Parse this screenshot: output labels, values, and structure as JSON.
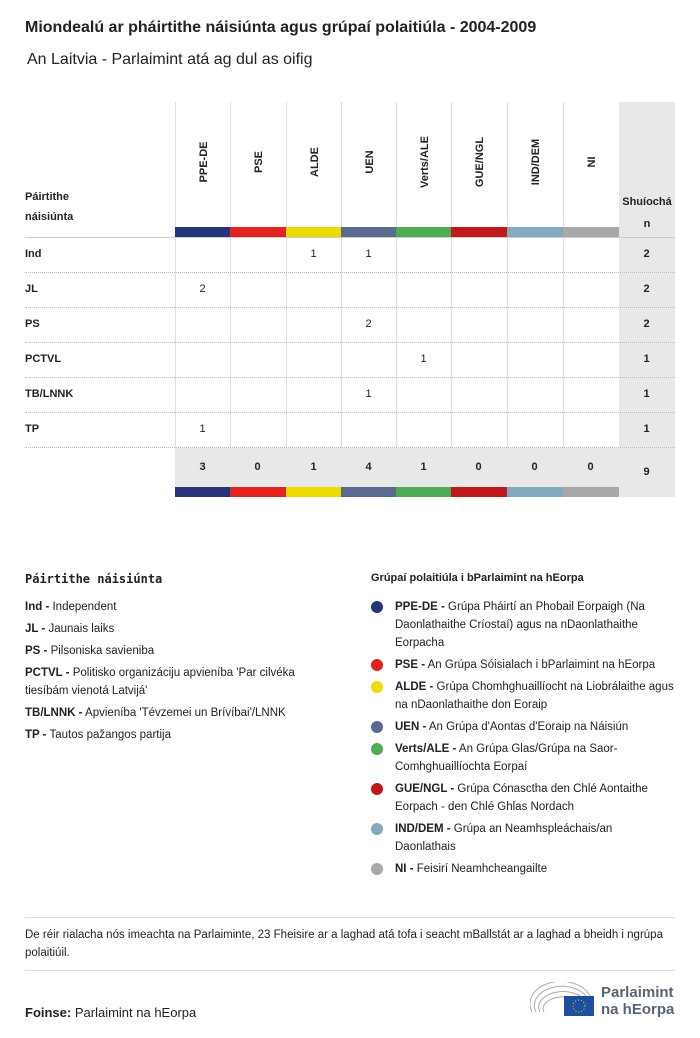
{
  "title": "Miondealú ar pháirtithe náisiúnta agus grúpaí polaitiúla - 2004-2009",
  "subtitle": "An Laitvia - Parlaimint atá ag dul as oifig",
  "table": {
    "row_header": "Páirtithe náisiúnta",
    "total_header": "Shuíochán",
    "groups": [
      {
        "label": "PPE-DE",
        "color": "#263479"
      },
      {
        "label": "PSE",
        "color": "#e42320"
      },
      {
        "label": "ALDE",
        "color": "#ecdc00"
      },
      {
        "label": "UEN",
        "color": "#5a6b92"
      },
      {
        "label": "Verts/ALE",
        "color": "#50ac53"
      },
      {
        "label": "GUE/NGL",
        "color": "#c0191c"
      },
      {
        "label": "IND/DEM",
        "color": "#84a9be"
      },
      {
        "label": "NI",
        "color": "#a8a8a8"
      }
    ],
    "rows": [
      {
        "party": "Ind",
        "values": [
          "",
          "",
          "1",
          "1",
          "",
          "",
          "",
          ""
        ],
        "total": "2"
      },
      {
        "party": "JL",
        "values": [
          "2",
          "",
          "",
          "",
          "",
          "",
          "",
          ""
        ],
        "total": "2"
      },
      {
        "party": "PS",
        "values": [
          "",
          "",
          "",
          "2",
          "",
          "",
          "",
          ""
        ],
        "total": "2"
      },
      {
        "party": "PCTVL",
        "values": [
          "",
          "",
          "",
          "",
          "1",
          "",
          "",
          ""
        ],
        "total": "1"
      },
      {
        "party": "TB/LNNK",
        "values": [
          "",
          "",
          "",
          "1",
          "",
          "",
          "",
          ""
        ],
        "total": "1"
      },
      {
        "party": "TP",
        "values": [
          "1",
          "",
          "",
          "",
          "",
          "",
          "",
          ""
        ],
        "total": "1"
      }
    ],
    "totals": [
      "3",
      "0",
      "1",
      "4",
      "1",
      "0",
      "0",
      "0"
    ],
    "grand_total": "9"
  },
  "legend_parties": {
    "title": "Páirtithe náisiúnta",
    "items": [
      {
        "abbr": "Ind -",
        "name": " Independent"
      },
      {
        "abbr": "JL -",
        "name": " Jaunais laiks"
      },
      {
        "abbr": "PS -",
        "name": " Pilsoniska savieniba"
      },
      {
        "abbr": "PCTVL -",
        "name": " Politisko organizáciju apvieníba 'Par cilvéka tiesíbám vienotá Latvijá'"
      },
      {
        "abbr": "TB/LNNK -",
        "name": " Apvieníba 'Tévzemei un Brívíbai'/LNNK"
      },
      {
        "abbr": "TP -",
        "name": " Tautos pažangos partija"
      }
    ]
  },
  "legend_groups": {
    "title": "Grúpaí polaitiúla i bParlaimint na hEorpa",
    "items": [
      {
        "abbr": "PPE-DE -",
        "name": " Grúpa Pháirtí an Phobail Eorpaigh (Na Daonlathaithe Críostaí) agus na nDaonlathaithe Eorpacha",
        "color": "#263479"
      },
      {
        "abbr": "PSE -",
        "name": " An Grúpa Sóisialach i bParlaimint na hEorpa",
        "color": "#e42320"
      },
      {
        "abbr": "ALDE -",
        "name": " Grúpa Chomhghuaillíocht na Liobrálaithe agus na nDaonlathaithe don Eoraip",
        "color": "#ecdc00"
      },
      {
        "abbr": "UEN -",
        "name": " An Grúpa d'Aontas d'Eoraip na Náisiún",
        "color": "#5a6b92"
      },
      {
        "abbr": "Verts/ALE -",
        "name": " An Grúpa Glas/Grúpa na Saor-Comhghuaillíochta Eorpaí",
        "color": "#50ac53"
      },
      {
        "abbr": "GUE/NGL -",
        "name": " Grúpa Cónasctha den Chlé Aontaithe Eorpach - den Chlé Ghlas Nordach",
        "color": "#c0191c"
      },
      {
        "abbr": "IND/DEM -",
        "name": " Grúpa an Neamhspleáchais/an Daonlathais",
        "color": "#84a9be"
      },
      {
        "abbr": "NI -",
        "name": " Feisirí Neamhcheangailte",
        "color": "#a8a8a8"
      }
    ]
  },
  "note": "De réir rialacha nós imeachta na Parlaiminte, 23 Fheisire ar a laghad atá tofa i seacht mBallstát ar a laghad a bheidh i ngrúpa polaitiúil.",
  "source_label": "Foinse:",
  "source": " Parlaimint na hEorpa",
  "logo": {
    "line1": "Parlaimint",
    "line2": "na hEorpa"
  }
}
